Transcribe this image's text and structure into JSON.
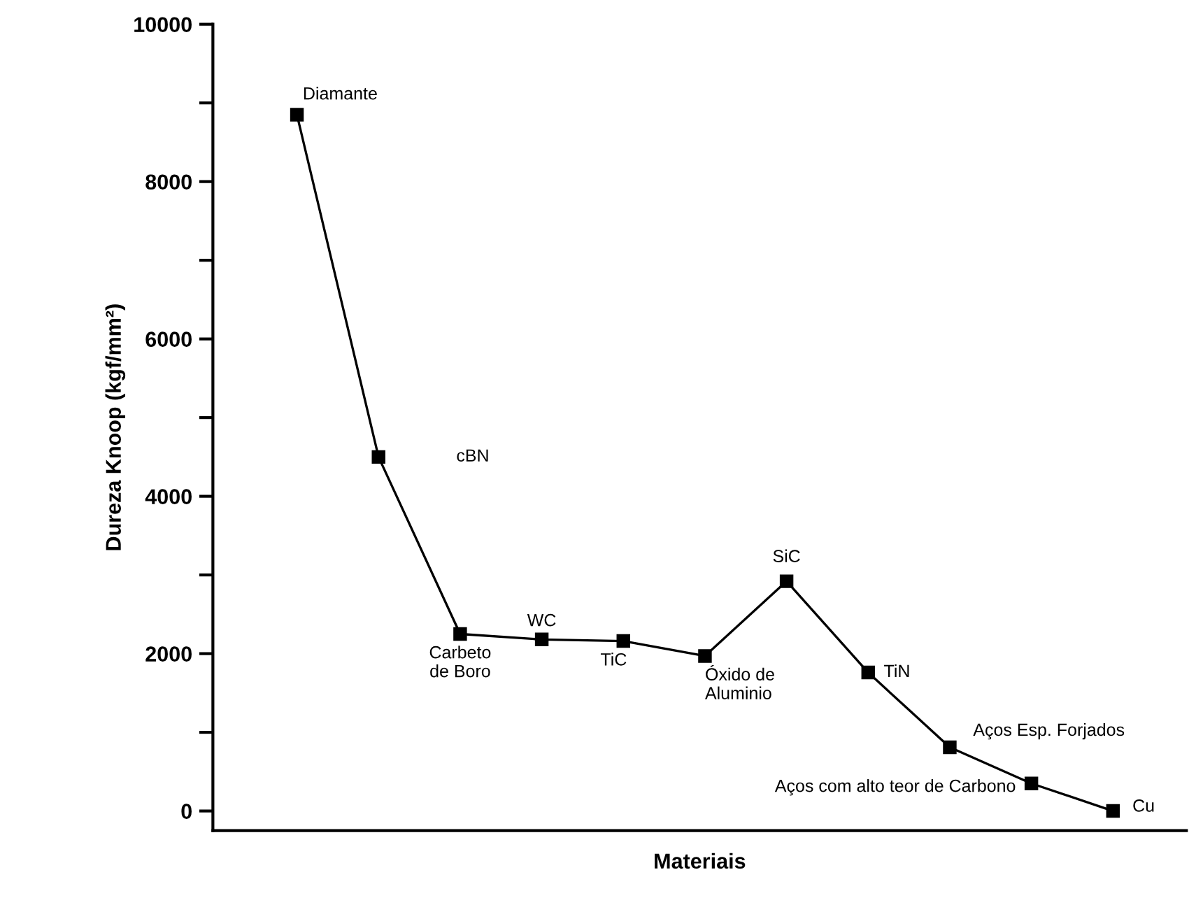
{
  "chart_data": {
    "type": "line",
    "xlabel": "Materiais",
    "ylabel": "Dureza Knoop (kgf/mm²)",
    "categories": [
      null,
      null,
      null,
      null,
      null,
      null,
      null,
      null,
      null,
      null,
      null
    ],
    "series": [
      {
        "color": "#000000",
        "values": [
          8850,
          4500,
          2250,
          2180,
          2160,
          1970,
          2920,
          1760,
          810,
          350,
          0
        ]
      }
    ],
    "ylim": [
      -250,
      10000
    ],
    "yticks": [
      0,
      {
        "value": 1000,
        "label": null
      },
      2000,
      {
        "value": 3000,
        "label": null
      },
      4000,
      {
        "value": 5000,
        "label": null
      },
      6000,
      {
        "value": 7000,
        "label": null
      },
      8000,
      {
        "value": 9000,
        "label": null
      },
      10000
    ],
    "marker": "square",
    "line_style": "solid",
    "grid": false,
    "legend": false,
    "annotations": [
      "Diamante",
      "cBN",
      "Carbeto\nde Boro",
      "WC",
      "TiC",
      "Óxido de\nAluminio",
      "SiC",
      "TiN",
      "Aços Esp. Forjados",
      "Aços com alto teor de Carbono",
      "Cu"
    ]
  }
}
